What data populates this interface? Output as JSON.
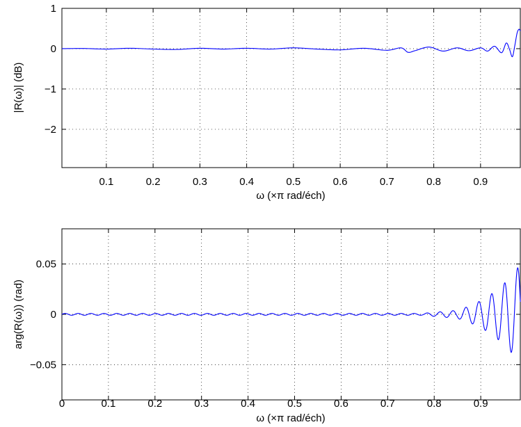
{
  "chart_data": [
    {
      "type": "line",
      "xlabel": "ω  (×π rad/éch)",
      "ylabel": "|R(ω)| (dB)",
      "xlim": [
        0.005,
        0.985
      ],
      "ylim": [
        -2.95,
        1.0
      ],
      "xticks": [
        0.1,
        0.2,
        0.3,
        0.4,
        0.5,
        0.6,
        0.7,
        0.8,
        0.9
      ],
      "xtick_labels": [
        "0.1",
        "0.2",
        "0.3",
        "0.4",
        "0.5",
        "0.6",
        "0.7",
        "0.8",
        "0.9"
      ],
      "yticks": [
        1,
        0,
        -1,
        -2
      ],
      "ytick_labels": [
        "1",
        "0",
        "−1",
        "−2"
      ],
      "grid": true,
      "series": [
        {
          "color": "#0000ff",
          "x": [
            0.005,
            0.05,
            0.1,
            0.15,
            0.2,
            0.25,
            0.3,
            0.35,
            0.4,
            0.45,
            0.5,
            0.55,
            0.6,
            0.65,
            0.7,
            0.73,
            0.745,
            0.76,
            0.79,
            0.82,
            0.85,
            0.875,
            0.9,
            0.915,
            0.93,
            0.945,
            0.955,
            0.962,
            0.968,
            0.973,
            0.978,
            0.982,
            0.985
          ],
          "y": [
            0.0,
            0.005,
            -0.01,
            0.01,
            -0.01,
            -0.02,
            0.01,
            -0.01,
            0.01,
            -0.01,
            0.02,
            -0.01,
            -0.03,
            0.01,
            -0.04,
            0.02,
            -0.09,
            -0.05,
            0.04,
            -0.06,
            0.02,
            -0.05,
            0.02,
            -0.06,
            0.06,
            -0.1,
            0.14,
            -0.02,
            -0.2,
            0.06,
            0.38,
            0.48,
            0.44
          ]
        }
      ]
    },
    {
      "type": "line",
      "xlabel": "ω  (×π rad/éch)",
      "ylabel": "arg(R(ω)) (rad)",
      "xlim": [
        0.0,
        0.985
      ],
      "ylim": [
        -0.085,
        0.085
      ],
      "xticks": [
        0,
        0.1,
        0.2,
        0.3,
        0.4,
        0.5,
        0.6,
        0.7,
        0.8,
        0.9
      ],
      "xtick_labels": [
        "0",
        "0.1",
        "0.2",
        "0.3",
        "0.4",
        "0.5",
        "0.6",
        "0.7",
        "0.8",
        "0.9"
      ],
      "yticks": [
        0.05,
        0,
        -0.05
      ],
      "ytick_labels": [
        "0.05",
        "0",
        "−0.05"
      ],
      "grid": true,
      "series": [
        {
          "color": "#0000ff",
          "oscillation": {
            "base_amplitude": 0.0009,
            "frequency_per_unit": 36,
            "growth_start_x": 0.78,
            "envelope_points_x": [
              0.78,
              0.85,
              0.88,
              0.91,
              0.94,
              0.97,
              0.985
            ],
            "envelope_points_amp": [
              0.0012,
              0.004,
              0.009,
              0.016,
              0.026,
              0.04,
              0.05
            ]
          }
        }
      ]
    }
  ]
}
